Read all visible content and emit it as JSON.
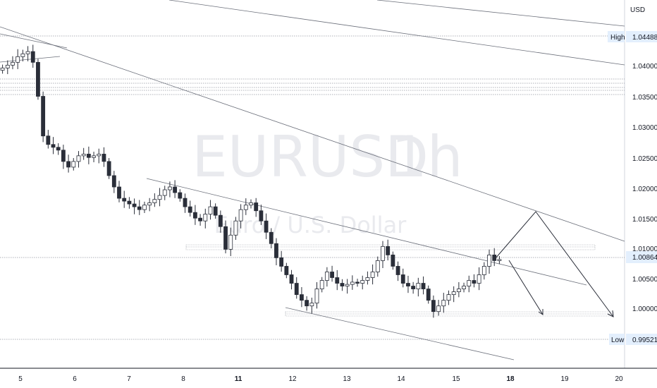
{
  "chart_data": {
    "type": "candlestick",
    "symbol": "EURUSD",
    "interval": "1h",
    "description": "Euro / U.S. Dollar",
    "currency": "USD",
    "ylim": [
      0.989,
      1.054
    ],
    "x_ticks": [
      "5",
      "6",
      "7",
      "8",
      "11",
      "12",
      "13",
      "14",
      "15",
      "18",
      "19",
      "20"
    ],
    "x_ticks_bold": [
      "11",
      "18"
    ],
    "y_ticks": [
      "1.04000",
      "1.03500",
      "1.03000",
      "1.02500",
      "1.02000",
      "1.01500",
      "1.01000",
      "1.00500",
      "1.00000"
    ],
    "high": {
      "label": "High",
      "value": "1.04488"
    },
    "low": {
      "label": "Low",
      "value": "0.99521"
    },
    "last": {
      "value": "1.00864"
    },
    "series": [
      {
        "values": [
          1.042,
          1.0425,
          1.043,
          1.044,
          1.0445,
          1.0449,
          1.043,
          1.037,
          1.03,
          1.0285,
          1.028,
          1.0275,
          1.0255,
          1.0245,
          1.0255,
          1.0265,
          1.0268,
          1.0262,
          1.0265,
          1.0268,
          1.0255,
          1.023,
          1.021,
          1.019,
          1.0185,
          1.018,
          1.0175,
          1.017,
          1.0178,
          1.0182,
          1.0188,
          1.0195,
          1.0205,
          1.021,
          1.02,
          1.019,
          1.0175,
          1.0165,
          1.0155,
          1.015,
          1.0162,
          1.0175,
          1.016,
          1.014,
          1.01,
          1.0125,
          1.015,
          1.017,
          1.0178,
          1.0182,
          1.0168,
          1.015,
          1.013,
          1.011,
          1.0085,
          1.007,
          1.0055,
          1.004,
          1.002,
          1.001,
          1.0,
          1.0005,
          1.003,
          1.0045,
          1.006,
          1.005,
          1.004,
          1.0035,
          1.0038,
          1.0042,
          1.004,
          1.0045,
          1.005,
          1.006,
          1.008,
          1.0105,
          1.009,
          1.007,
          1.0055,
          1.004,
          1.0035,
          1.003,
          1.004,
          1.003,
          1.001,
          0.999,
          1.0,
          1.001,
          1.002,
          1.0025,
          1.003,
          1.0035,
          1.0045,
          1.004,
          1.0055,
          1.007,
          1.009,
          1.008,
          1.0082
        ]
      }
    ],
    "annotations": [
      {
        "type": "projection",
        "label": "bullish path"
      },
      {
        "type": "projection",
        "label": "bearish path"
      }
    ]
  },
  "colors": {
    "candle": "#2a2e39",
    "grid_dotted": "#9598a1",
    "trend": "#6b6f7a",
    "badge_bg": "#e3effd",
    "last_badge_bg": "#e3effd",
    "watermark": "#e9eaee"
  }
}
